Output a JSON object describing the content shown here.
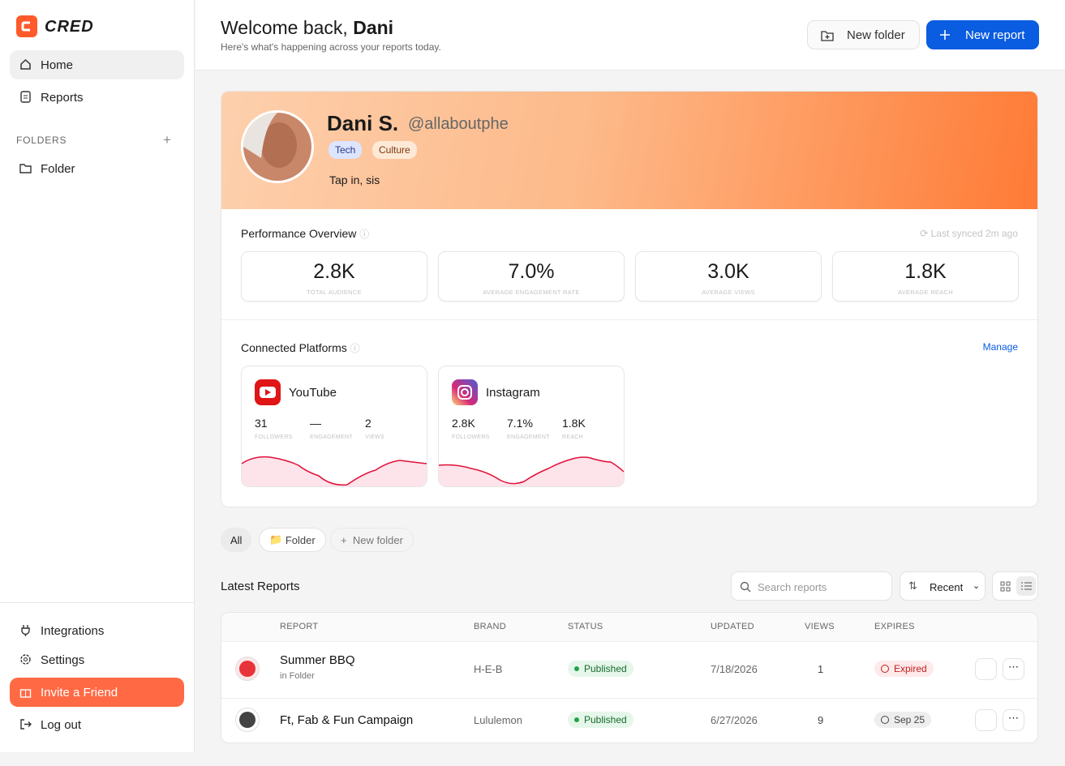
{
  "sidebar": {
    "brand": "CRED",
    "nav": [
      "Home",
      "Reports"
    ],
    "folders_label": "FOLDERS",
    "folders": [
      "Folder"
    ],
    "bottom": [
      "Integrations",
      "Settings"
    ],
    "invite": "Invite a Friend",
    "logout": "Log out"
  },
  "header": {
    "title_prefix": "Welcome back,",
    "title_name": "Dani",
    "subtitle": "Here's what's happening across your reports today.",
    "new_folder": "New folder",
    "new_report": "New report"
  },
  "profile": {
    "name": "Dani S.",
    "handle": "@allaboutphe",
    "tags": [
      "Tech",
      "Culture"
    ],
    "bio": "Tap in, sis"
  },
  "performance": {
    "title": "Performance Overview",
    "synced": "Last synced 2m ago",
    "stats": [
      {
        "value": "2.8K",
        "label": "TOTAL AUDIENCE"
      },
      {
        "value": "7.0%",
        "label": "AVERAGE ENGAGEMENT RATE"
      },
      {
        "value": "3.0K",
        "label": "AVERAGE VIEWS"
      },
      {
        "value": "1.8K",
        "label": "AVERAGE REACH"
      }
    ]
  },
  "platforms": {
    "title": "Connected Platforms",
    "manage": "Manage",
    "items": [
      {
        "name": "YouTube",
        "stats": [
          {
            "value": "31",
            "label": "FOLLOWERS"
          },
          {
            "value": "—",
            "label": "ENGAGEMENT"
          },
          {
            "value": "2",
            "label": "VIEWS"
          }
        ]
      },
      {
        "name": "Instagram",
        "stats": [
          {
            "value": "2.8K",
            "label": "FOLLOWERS"
          },
          {
            "value": "7.1%",
            "label": "ENGAGEMENT"
          },
          {
            "value": "1.8K",
            "label": "REACH"
          }
        ]
      }
    ]
  },
  "filters": [
    "All",
    "Folder",
    "New folder"
  ],
  "reports": {
    "title": "Latest Reports",
    "search_placeholder": "Search reports",
    "sort": "Recent",
    "columns": [
      "REPORT",
      "BRAND",
      "STATUS",
      "UPDATED",
      "VIEWS",
      "EXPIRES"
    ],
    "rows": [
      {
        "name": "Summer BBQ",
        "folder": "in Folder",
        "brand": "H-E-B",
        "status": "Published",
        "updated": "7/18/2026",
        "views": "1",
        "expires": "Expired"
      },
      {
        "name": "Ft, Fab & Fun Campaign",
        "brand": "Lululemon",
        "status": "Published",
        "updated": "6/27/2026",
        "views": "9",
        "expires": "Sep 25"
      }
    ]
  }
}
